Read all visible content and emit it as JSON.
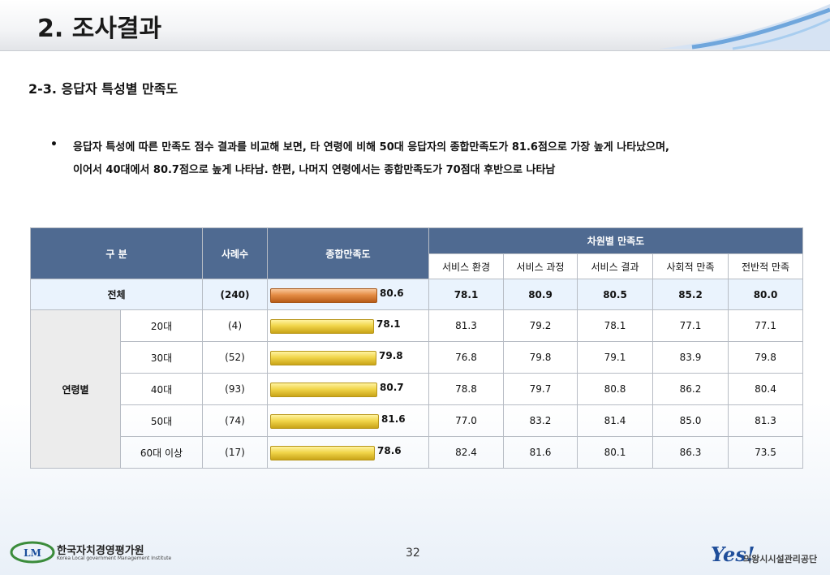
{
  "header": {
    "title": "2. 조사결과"
  },
  "section": {
    "title": "2-3. 응답자 특성별 만족도"
  },
  "summary": {
    "bullet": "•",
    "line1": "응답자 특성에 따른 만족도 점수 결과를 비교해 보면, 타 연령에 비해 50대 응답자의 종합만족도가 81.6점으로 가장 높게 나타났으며,",
    "line2": "이어서 40대에서 80.7점으로 높게 나타남. 한편, 나머지 연령에서는 종합만족도가 70점대 후반으로 나타남"
  },
  "table": {
    "headers": {
      "category": "구    분",
      "count": "사례수",
      "overall": "종합만족도",
      "dimension_group": "차원별 만족도",
      "dimensions": [
        "서비스 환경",
        "서비스 과정",
        "서비스 결과",
        "사회적 만족",
        "전반적 만족"
      ]
    },
    "total": {
      "label": "전체",
      "count": "(240)",
      "overall": 80.6,
      "overall_label": "80.6",
      "dims": [
        "78.1",
        "80.9",
        "80.5",
        "85.2",
        "80.0"
      ]
    },
    "group_label": "연령별",
    "rows": [
      {
        "label": "20대",
        "count": "(4)",
        "overall": 78.1,
        "overall_label": "78.1",
        "dims": [
          "81.3",
          "79.2",
          "78.1",
          "77.1",
          "77.1"
        ]
      },
      {
        "label": "30대",
        "count": "(52)",
        "overall": 79.8,
        "overall_label": "79.8",
        "dims": [
          "76.8",
          "79.8",
          "79.1",
          "83.9",
          "79.8"
        ]
      },
      {
        "label": "40대",
        "count": "(93)",
        "overall": 80.7,
        "overall_label": "80.7",
        "dims": [
          "78.8",
          "79.7",
          "80.8",
          "86.2",
          "80.4"
        ]
      },
      {
        "label": "50대",
        "count": "(74)",
        "overall": 81.6,
        "overall_label": "81.6",
        "dims": [
          "77.0",
          "83.2",
          "81.4",
          "85.0",
          "81.3"
        ]
      },
      {
        "label": "60대 이상",
        "count": "(17)",
        "overall": 78.6,
        "overall_label": "78.6",
        "dims": [
          "82.4",
          "81.6",
          "80.1",
          "86.3",
          "73.5"
        ]
      }
    ]
  },
  "footer": {
    "page_number": "32",
    "left_logo_mark": "LM",
    "left_logo_name": "한국자치경영평가원",
    "left_logo_sub": "Korea Local government Management Institute",
    "right_logo_mark": "Yes!",
    "right_logo_name": "의왕시시설관리공단"
  },
  "colors": {
    "header_blue": "#4f6a91",
    "total_bar": "#e58d45",
    "row_bar": "#f1d54a"
  }
}
